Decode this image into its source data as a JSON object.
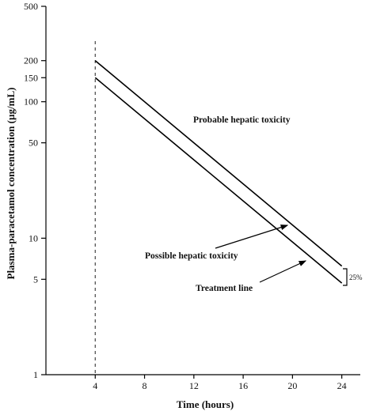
{
  "chart_data": {
    "type": "line",
    "xlabel": "Time (hours)",
    "ylabel": "Plasma-paracetamol concentration (µg/mL)",
    "x_ticks": [
      4,
      8,
      12,
      16,
      20,
      24
    ],
    "y_ticks": [
      1,
      5,
      10,
      50,
      100,
      150,
      200,
      500
    ],
    "xlim": [
      0,
      25.5
    ],
    "ylim": [
      1,
      500
    ],
    "y_scale": "log",
    "vertical_reference_x": 4,
    "series": [
      {
        "name": "Probable hepatic toxicity",
        "x": [
          4,
          24
        ],
        "y": [
          200,
          6.25
        ]
      },
      {
        "name": "Treatment line",
        "x": [
          4,
          24
        ],
        "y": [
          150,
          4.69
        ]
      }
    ],
    "annotations": {
      "region_label": "Probable hepatic toxicity",
      "possible_label": "Possible hepatic toxicity",
      "treatment_label": "Treatment line",
      "gap_label": "25%"
    },
    "grid": false
  }
}
